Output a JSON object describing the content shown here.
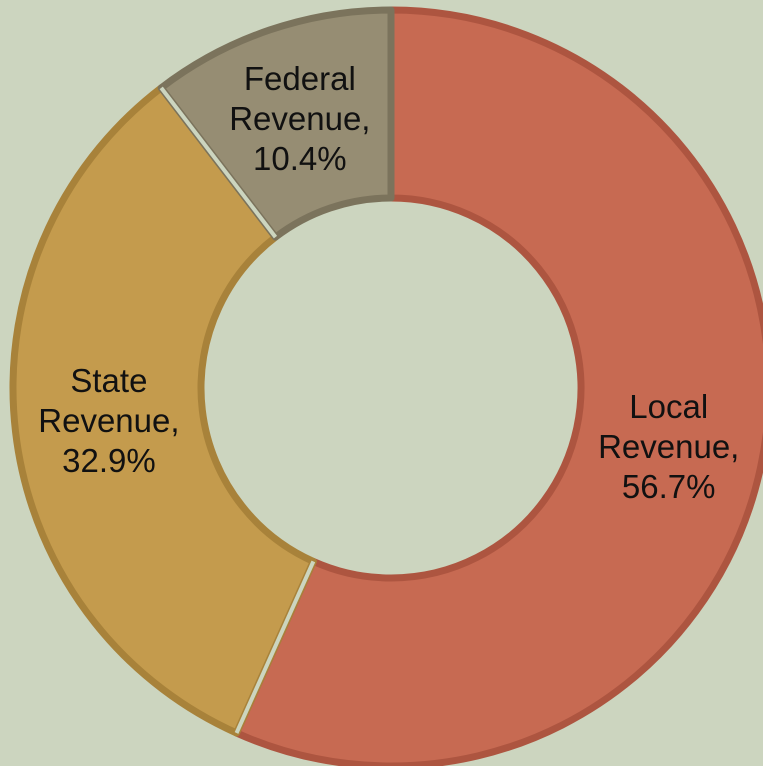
{
  "chart_data": {
    "type": "donut",
    "categories": [
      "Local Revenue,",
      "State Revenue,",
      "Federal Revenue,"
    ],
    "values": [
      56.7,
      32.9,
      10.4
    ],
    "value_labels": [
      "56.7%",
      "32.9%",
      "10.4%"
    ],
    "colors": [
      "#c76a52",
      "#c49b4d",
      "#968d73"
    ],
    "edge_colors": [
      "#ad5540",
      "#a8823a",
      "#7b735c"
    ]
  }
}
